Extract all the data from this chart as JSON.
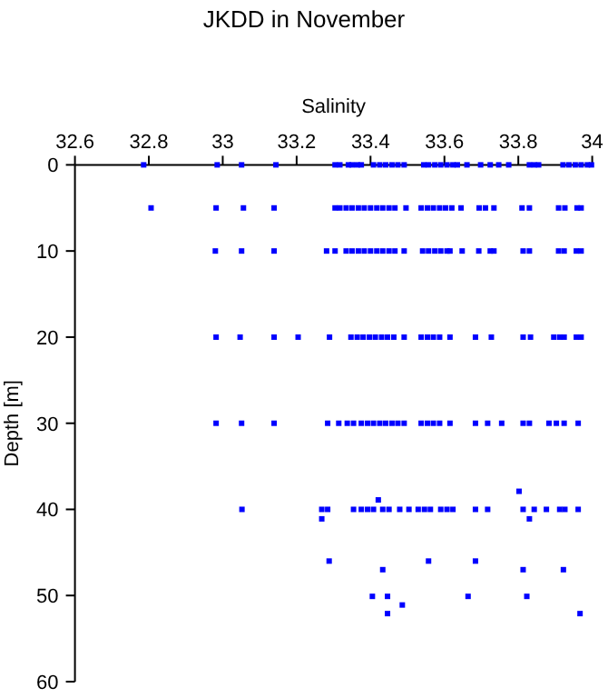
{
  "chart_data": {
    "type": "scatter",
    "title": "JKDD in November",
    "xlabel": "Salinity",
    "ylabel": "Depth [m]",
    "xlim": [
      32.6,
      34
    ],
    "xticks": [
      32.6,
      32.8,
      33,
      33.2,
      33.4,
      33.6,
      33.8,
      34
    ],
    "ylim": [
      60,
      0
    ],
    "yticks": [
      0,
      10,
      20,
      30,
      40,
      50,
      60
    ],
    "marker": "square",
    "grid": false,
    "series": [
      {
        "color": "#0000ff",
        "x": [
          32.786,
          32.985,
          33.051,
          33.144,
          33.304,
          33.317,
          33.34,
          33.35,
          33.364,
          33.375,
          33.408,
          33.425,
          33.441,
          33.458,
          33.474,
          33.491,
          33.544,
          33.557,
          33.574,
          33.59,
          33.607,
          33.623,
          33.635,
          33.661,
          33.698,
          33.724,
          33.747,
          33.774,
          33.83,
          33.843,
          33.855,
          33.921,
          33.937,
          33.954,
          33.97,
          33.987,
          33.998,
          32.806,
          32.982,
          33.056,
          33.139,
          33.304,
          33.317,
          33.334,
          33.35,
          33.367,
          33.383,
          33.4,
          33.417,
          33.433,
          33.45,
          33.466,
          33.496,
          33.537,
          33.554,
          33.57,
          33.587,
          33.603,
          33.62,
          33.645,
          33.694,
          33.711,
          33.734,
          33.81,
          33.83,
          33.909,
          33.926,
          33.959,
          33.97,
          32.98,
          33.051,
          33.139,
          33.281,
          33.304,
          33.334,
          33.35,
          33.367,
          33.383,
          33.4,
          33.417,
          33.433,
          33.45,
          33.466,
          33.491,
          33.541,
          33.557,
          33.574,
          33.59,
          33.607,
          33.615,
          33.648,
          33.693,
          33.724,
          33.734,
          33.813,
          33.83,
          33.909,
          33.924,
          33.957,
          33.97,
          32.982,
          33.047,
          33.139,
          33.204,
          33.289,
          33.347,
          33.364,
          33.38,
          33.397,
          33.413,
          33.43,
          33.446,
          33.463,
          33.491,
          33.537,
          33.554,
          33.57,
          33.587,
          33.615,
          33.684,
          33.727,
          33.813,
          33.833,
          33.896,
          33.912,
          33.924,
          33.957,
          33.97,
          32.982,
          33.051,
          33.139,
          33.284,
          33.314,
          33.337,
          33.354,
          33.375,
          33.392,
          33.408,
          33.425,
          33.441,
          33.458,
          33.474,
          33.491,
          33.537,
          33.554,
          33.57,
          33.587,
          33.615,
          33.684,
          33.717,
          33.755,
          33.813,
          33.83,
          33.883,
          33.903,
          33.924,
          33.962,
          33.052,
          33.268,
          33.284,
          33.354,
          33.375,
          33.392,
          33.408,
          33.433,
          33.45,
          33.479,
          33.504,
          33.529,
          33.546,
          33.562,
          33.59,
          33.607,
          33.623,
          33.684,
          33.717,
          33.813,
          33.843,
          33.876,
          33.912,
          33.926,
          33.962,
          33.421,
          33.802,
          33.268,
          33.83,
          33.288,
          33.557,
          33.684,
          33.433,
          33.813,
          33.922,
          33.405,
          33.446,
          33.664,
          33.823,
          33.486,
          33.446,
          33.967
        ],
        "values": [
          0,
          0,
          0,
          0,
          0,
          0,
          0,
          0,
          0,
          0,
          0,
          0,
          0,
          0,
          0,
          0,
          0,
          0,
          0,
          0,
          0,
          0,
          0,
          0,
          0,
          0,
          0,
          0,
          0,
          0,
          0,
          0,
          0,
          0,
          0,
          0,
          0,
          5,
          5,
          5,
          5,
          5,
          5,
          5,
          5,
          5,
          5,
          5,
          5,
          5,
          5,
          5,
          5,
          5,
          5,
          5,
          5,
          5,
          5,
          5,
          5,
          5,
          5,
          5,
          5,
          5,
          5,
          5,
          5,
          10,
          10,
          10,
          10,
          10,
          10,
          10,
          10,
          10,
          10,
          10,
          10,
          10,
          10,
          10,
          10,
          10,
          10,
          10,
          10,
          10,
          10,
          10,
          10,
          10,
          10,
          10,
          10,
          10,
          10,
          10,
          20,
          20,
          20,
          20,
          20,
          20,
          20,
          20,
          20,
          20,
          20,
          20,
          20,
          20,
          20,
          20,
          20,
          20,
          20,
          20,
          20,
          20,
          20,
          20,
          20,
          20,
          20,
          20,
          30,
          30,
          30,
          30,
          30,
          30,
          30,
          30,
          30,
          30,
          30,
          30,
          30,
          30,
          30,
          30,
          30,
          30,
          30,
          30,
          30,
          30,
          30,
          30,
          30,
          30,
          30,
          30,
          30,
          40,
          40,
          40,
          40,
          40,
          40,
          40,
          40,
          40,
          40,
          40,
          40,
          40,
          40,
          40,
          40,
          40,
          40,
          40,
          40,
          40,
          40,
          40,
          40,
          40,
          38.9,
          37.9,
          41.1,
          41.1,
          46,
          46,
          46,
          47,
          47,
          47,
          50.1,
          50.1,
          50.1,
          50.1,
          51.1,
          52.1,
          52.1
        ]
      }
    ]
  }
}
